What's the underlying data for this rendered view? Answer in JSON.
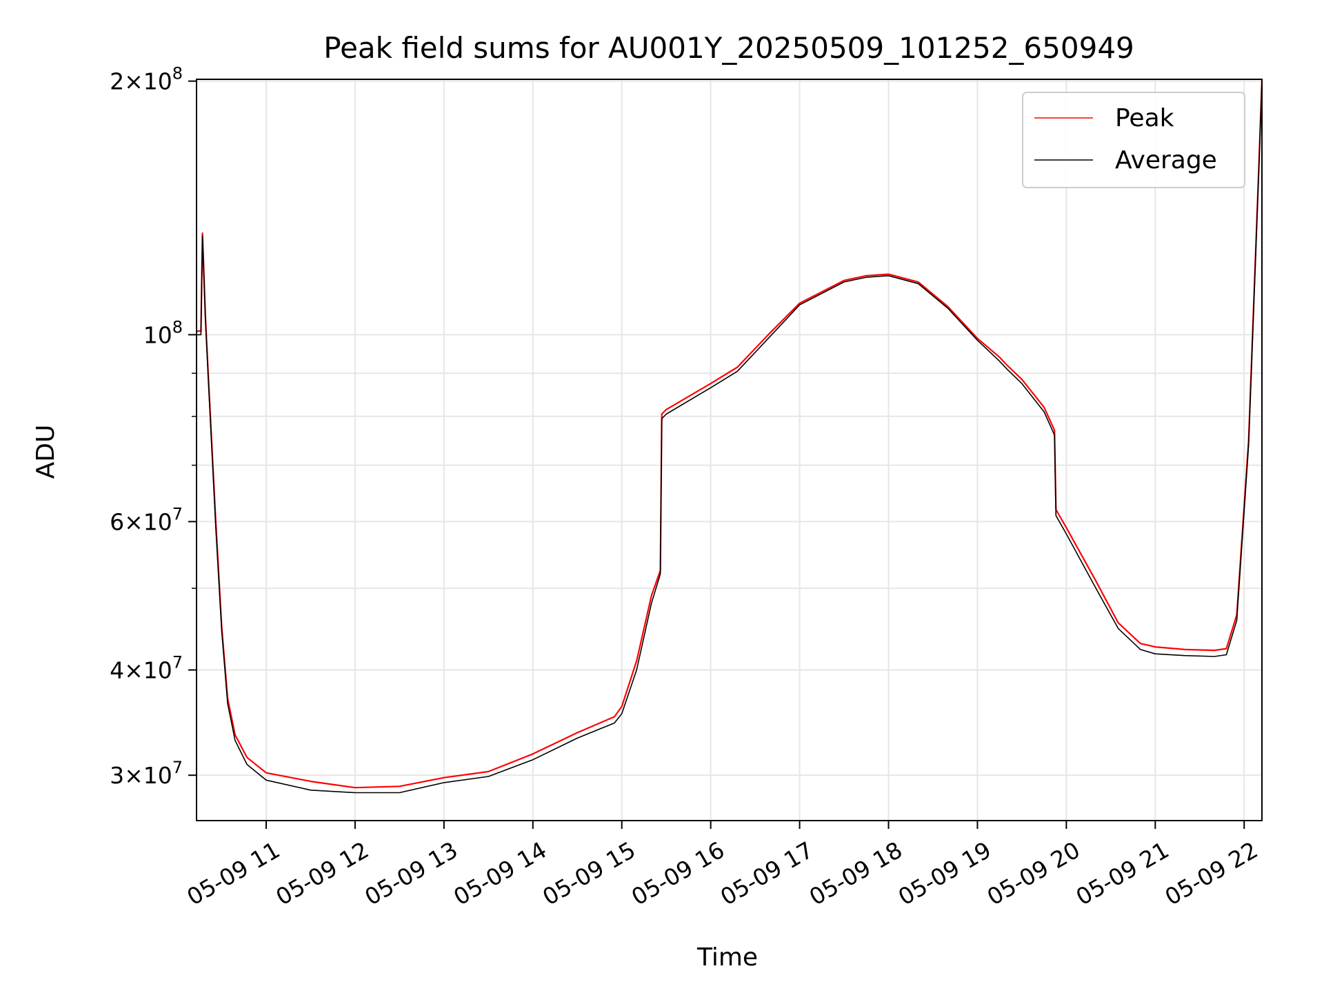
{
  "chart_data": {
    "type": "line",
    "title": "Peak field sums for AU001Y_20250509_101252_650949",
    "xlabel": "Time",
    "ylabel": "ADU",
    "xscale": "time",
    "yscale": "log",
    "x_range": [
      "05-09 10:13",
      "05-09 22:12"
    ],
    "ylim": [
      26500000,
      201000000
    ],
    "grid": true,
    "legend_placement": "top-right",
    "x_ticks": [
      {
        "label": "05-09 11",
        "hour": 11
      },
      {
        "label": "05-09 12",
        "hour": 12
      },
      {
        "label": "05-09 13",
        "hour": 13
      },
      {
        "label": "05-09 14",
        "hour": 14
      },
      {
        "label": "05-09 15",
        "hour": 15
      },
      {
        "label": "05-09 16",
        "hour": 16
      },
      {
        "label": "05-09 17",
        "hour": 17
      },
      {
        "label": "05-09 18",
        "hour": 18
      },
      {
        "label": "05-09 19",
        "hour": 19
      },
      {
        "label": "05-09 20",
        "hour": 20
      },
      {
        "label": "05-09 21",
        "hour": 21
      },
      {
        "label": "05-09 22",
        "hour": 22
      }
    ],
    "y_ticks": [
      {
        "value": 30000000,
        "mantissa": "3",
        "exponent": "7"
      },
      {
        "value": 40000000,
        "mantissa": "4",
        "exponent": "7"
      },
      {
        "value": 60000000,
        "mantissa": "6",
        "exponent": "7"
      },
      {
        "value": 100000000,
        "mantissa": "",
        "exponent": "8"
      },
      {
        "value": 200000000,
        "mantissa": "2",
        "exponent": "8"
      }
    ],
    "y_minor_ticks": [
      50000000,
      70000000,
      80000000,
      90000000
    ],
    "series": [
      {
        "name": "Peak",
        "color": "#ff0000",
        "x": [
          "05-09 10:13",
          "05-09 10:16",
          "05-09 10:17",
          "05-09 10:19",
          "05-09 10:21",
          "05-09 10:26",
          "05-09 10:30",
          "05-09 10:34",
          "05-09 10:39",
          "05-09 10:47",
          "05-09 11:00",
          "05-09 11:30",
          "05-09 12:00",
          "05-09 12:30",
          "05-09 13:00",
          "05-09 13:30",
          "05-09 14:00",
          "05-09 14:30",
          "05-09 14:55",
          "05-09 15:00",
          "05-09 15:10",
          "05-09 15:20",
          "05-09 15:26",
          "05-09 15:27",
          "05-09 15:30",
          "05-09 16:00",
          "05-09 16:18",
          "05-09 16:40",
          "05-09 17:00",
          "05-09 17:30",
          "05-09 17:45",
          "05-09 18:00",
          "05-09 18:20",
          "05-09 18:40",
          "05-09 19:00",
          "05-09 19:15",
          "05-09 19:20",
          "05-09 19:30",
          "05-09 19:45",
          "05-09 19:52",
          "05-09 19:53",
          "05-09 20:00",
          "05-09 20:20",
          "05-09 20:35",
          "05-09 20:50",
          "05-09 21:00",
          "05-09 21:20",
          "05-09 21:40",
          "05-09 21:48",
          "05-09 21:55",
          "05-09 22:03",
          "05-09 22:10",
          "05-09 22:12"
        ],
        "y": [
          101000000,
          101000000,
          132000000,
          105000000,
          89000000,
          60000000,
          45000000,
          37000000,
          33500000,
          31500000,
          30200000,
          29500000,
          29000000,
          29100000,
          29800000,
          30300000,
          31800000,
          33700000,
          35200000,
          36200000,
          41000000,
          49000000,
          52500000,
          80500000,
          81500000,
          87500000,
          91500000,
          100500000,
          109000000,
          116000000,
          117500000,
          118000000,
          115500000,
          108000000,
          99000000,
          94000000,
          92000000,
          88500000,
          82000000,
          77000000,
          62000000,
          59000000,
          51000000,
          45500000,
          43000000,
          42600000,
          42300000,
          42200000,
          42400000,
          46500000,
          75000000,
          160000000,
          201000000
        ]
      },
      {
        "name": "Average",
        "color": "#000000",
        "x": [
          "05-09 10:13",
          "05-09 10:16",
          "05-09 10:17",
          "05-09 10:19",
          "05-09 10:21",
          "05-09 10:26",
          "05-09 10:30",
          "05-09 10:34",
          "05-09 10:39",
          "05-09 10:47",
          "05-09 11:00",
          "05-09 11:30",
          "05-09 12:00",
          "05-09 12:30",
          "05-09 13:00",
          "05-09 13:30",
          "05-09 14:00",
          "05-09 14:30",
          "05-09 14:55",
          "05-09 15:00",
          "05-09 15:10",
          "05-09 15:20",
          "05-09 15:26",
          "05-09 15:27",
          "05-09 15:30",
          "05-09 16:00",
          "05-09 16:18",
          "05-09 16:40",
          "05-09 17:00",
          "05-09 17:30",
          "05-09 17:45",
          "05-09 18:00",
          "05-09 18:20",
          "05-09 18:40",
          "05-09 19:00",
          "05-09 19:15",
          "05-09 19:20",
          "05-09 19:30",
          "05-09 19:45",
          "05-09 19:52",
          "05-09 19:53",
          "05-09 20:00",
          "05-09 20:20",
          "05-09 20:35",
          "05-09 20:50",
          "05-09 21:00",
          "05-09 21:20",
          "05-09 21:40",
          "05-09 21:48",
          "05-09 21:55",
          "05-09 22:03",
          "05-09 22:10",
          "05-09 22:12"
        ],
        "y": [
          100000000,
          100000000,
          131000000,
          104000000,
          88000000,
          59000000,
          44500000,
          36500000,
          33000000,
          30900000,
          29600000,
          28800000,
          28600000,
          28600000,
          29400000,
          29900000,
          31300000,
          33200000,
          34600000,
          35500000,
          40000000,
          48000000,
          52000000,
          79500000,
          80500000,
          86500000,
          90500000,
          99500000,
          108500000,
          115500000,
          117000000,
          117500000,
          115000000,
          107500000,
          98500000,
          93000000,
          91000000,
          87500000,
          81000000,
          76000000,
          61000000,
          58000000,
          50000000,
          44800000,
          42300000,
          41800000,
          41600000,
          41500000,
          41700000,
          45800000,
          74000000,
          158000000,
          200500000
        ]
      }
    ]
  }
}
